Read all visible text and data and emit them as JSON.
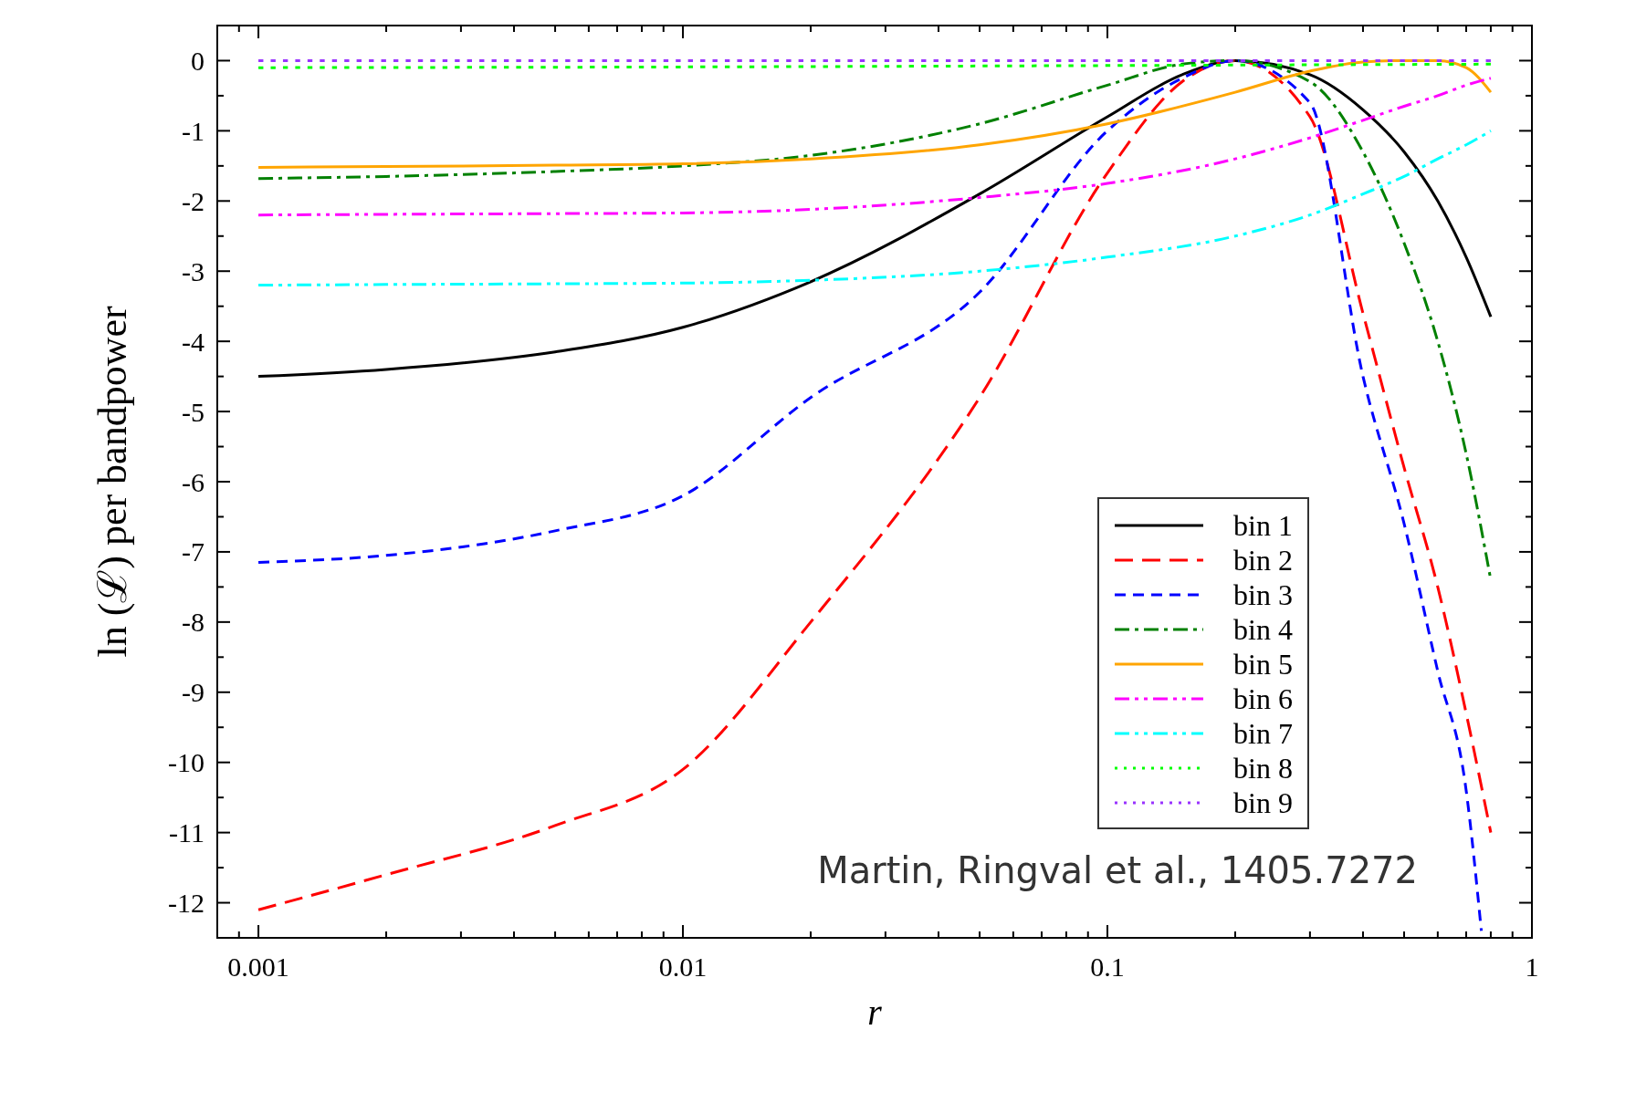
{
  "chart_data": {
    "type": "line",
    "xlabel": "r",
    "ylabel": "ln (ℒ) per bandpower",
    "log": "x",
    "xlim": [
      0.0008,
      1
    ],
    "xticks": [
      0.001,
      0.01,
      0.1,
      1
    ],
    "ylim": [
      -12.5,
      0.5
    ],
    "yticks": [
      0,
      -1,
      -2,
      -3,
      -4,
      -5,
      -6,
      -7,
      -8,
      -9,
      -10,
      -11,
      -12
    ],
    "legend": "bottom right",
    "grid": false,
    "annotations": [
      "Martin, Ringval et al., 1405.7272"
    ],
    "series": [
      {
        "name": "bin 1",
        "color": "#000000",
        "line_style": "solid",
        "x": [
          0.001,
          0.002,
          0.005,
          0.01,
          0.02,
          0.05,
          0.1,
          0.15,
          0.2,
          0.3,
          0.4,
          0.5,
          0.6,
          0.7,
          0.8
        ],
        "values": [
          -4.5,
          -4.4,
          -4.15,
          -3.8,
          -3.15,
          -1.9,
          -0.8,
          -0.2,
          0,
          -0.2,
          -0.7,
          -1.3,
          -2.0,
          -2.8,
          -3.65
        ]
      },
      {
        "name": "bin 2",
        "color": "#ff0000",
        "line_style": "longdash",
        "x": [
          0.001,
          0.002,
          0.005,
          0.01,
          0.02,
          0.05,
          0.1,
          0.15,
          0.2,
          0.3,
          0.4,
          0.5,
          0.6,
          0.7,
          0.8
        ],
        "values": [
          -12.1,
          -11.6,
          -10.9,
          -10.1,
          -8.0,
          -4.8,
          -1.6,
          -0.3,
          0,
          -0.8,
          -3.6,
          -5.8,
          -7.5,
          -9.3,
          -11
        ]
      },
      {
        "name": "bin 3",
        "color": "#0000ff",
        "line_style": "dashed",
        "x": [
          0.001,
          0.002,
          0.005,
          0.01,
          0.02,
          0.05,
          0.1,
          0.15,
          0.2,
          0.3,
          0.4,
          0.5,
          0.6,
          0.7,
          0.76
        ],
        "values": [
          -7.15,
          -7.05,
          -6.7,
          -6.2,
          -4.8,
          -3.3,
          -1.0,
          -0.25,
          0,
          -0.6,
          -4.5,
          -6.6,
          -8.7,
          -10.4,
          -12.4
        ]
      },
      {
        "name": "bin 4",
        "color": "#008000",
        "line_style": "dashdot",
        "x": [
          0.001,
          0.002,
          0.005,
          0.01,
          0.02,
          0.05,
          0.1,
          0.15,
          0.2,
          0.3,
          0.4,
          0.5,
          0.6,
          0.7,
          0.8
        ],
        "values": [
          -1.68,
          -1.65,
          -1.58,
          -1.5,
          -1.35,
          -0.9,
          -0.35,
          -0.05,
          0,
          -0.3,
          -1.3,
          -2.6,
          -4.0,
          -5.6,
          -7.4
        ]
      },
      {
        "name": "bin 5",
        "color": "#ffa500",
        "line_style": "solid",
        "x": [
          0.001,
          0.002,
          0.005,
          0.01,
          0.02,
          0.05,
          0.1,
          0.2,
          0.3,
          0.4,
          0.5,
          0.6,
          0.7,
          0.8
        ],
        "values": [
          -1.52,
          -1.51,
          -1.49,
          -1.47,
          -1.4,
          -1.2,
          -0.9,
          -0.45,
          -0.15,
          -0.02,
          0,
          0,
          -0.1,
          -0.45
        ]
      },
      {
        "name": "bin 6",
        "color": "#ff00ff",
        "line_style": "dashdotdot",
        "x": [
          0.001,
          0.002,
          0.005,
          0.01,
          0.02,
          0.05,
          0.1,
          0.2,
          0.3,
          0.4,
          0.5,
          0.6,
          0.7,
          0.8
        ],
        "values": [
          -2.2,
          -2.19,
          -2.18,
          -2.17,
          -2.12,
          -1.95,
          -1.75,
          -1.4,
          -1.1,
          -0.85,
          -0.65,
          -0.5,
          -0.35,
          -0.25
        ]
      },
      {
        "name": "bin 7",
        "color": "#00ffff",
        "line_style": "dashdotdot",
        "x": [
          0.001,
          0.002,
          0.005,
          0.01,
          0.02,
          0.05,
          0.1,
          0.2,
          0.3,
          0.4,
          0.5,
          0.6,
          0.7,
          0.8
        ],
        "values": [
          -3.2,
          -3.19,
          -3.18,
          -3.17,
          -3.13,
          -3.0,
          -2.8,
          -2.5,
          -2.2,
          -1.9,
          -1.65,
          -1.4,
          -1.2,
          -1.0
        ]
      },
      {
        "name": "bin 8",
        "color": "#00ff00",
        "line_style": "dotted",
        "x": [
          0.001,
          0.01,
          0.1,
          0.8
        ],
        "values": [
          -0.1,
          -0.09,
          -0.07,
          -0.05
        ]
      },
      {
        "name": "bin 9",
        "color": "#9933ff",
        "line_style": "dotted",
        "x": [
          0.001,
          0.01,
          0.1,
          0.8
        ],
        "values": [
          0,
          0,
          0,
          0
        ]
      }
    ]
  }
}
